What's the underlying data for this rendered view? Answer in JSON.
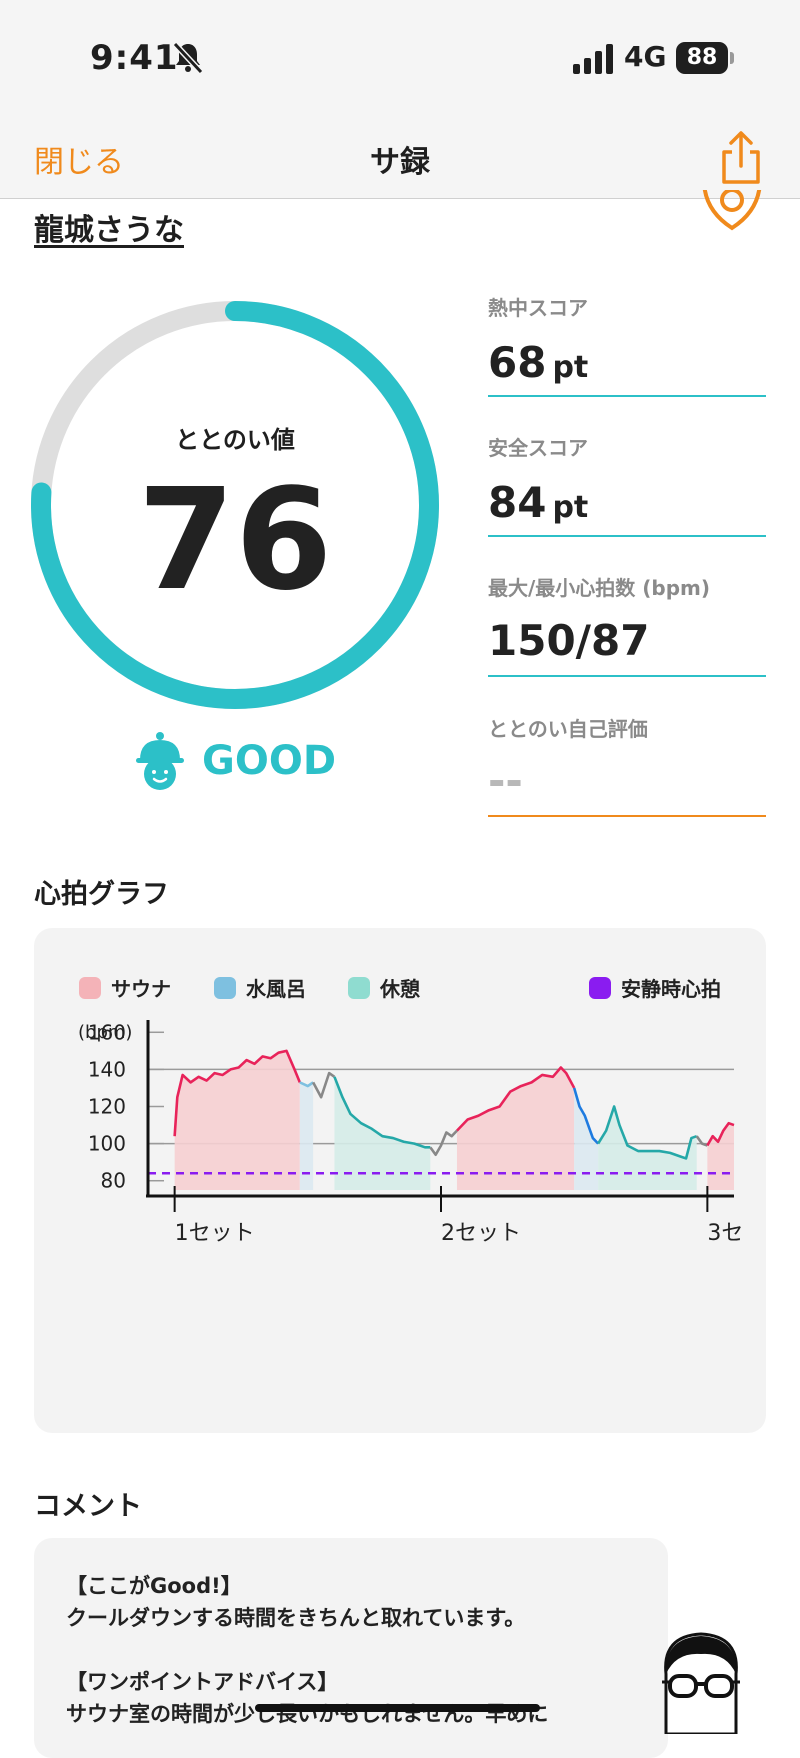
{
  "status_bar": {
    "time": "9:41",
    "network": "4G",
    "battery": "88"
  },
  "nav": {
    "close_label": "閉じる",
    "title": "サ録"
  },
  "user": {
    "name": "龍城さうな"
  },
  "gauge": {
    "label": "ととのい値",
    "value": "76",
    "fraction": 0.76,
    "color": "#2cc0c8"
  },
  "rating": {
    "text": "GOOD"
  },
  "scores": [
    {
      "label": "熱中スコア",
      "value": "68",
      "unit": "pt"
    },
    {
      "label": "安全スコア",
      "value": "84",
      "unit": "pt"
    },
    {
      "label": "最大/最小心拍数 (bpm)",
      "value": "150/87",
      "unit": ""
    },
    {
      "label": "ととのい自己評価",
      "value": "--",
      "unit": ""
    }
  ],
  "heart_section": {
    "title": "心拍グラフ"
  },
  "comment_section": {
    "title": "コメント",
    "lines": [
      "【ここがGood!】",
      "クールダウンする時間をきちんと取れています。",
      "",
      "【ワンポイントアドバイス】",
      "サウナ室の時間が少し長いかもしれません。早めに"
    ]
  },
  "chart_data": {
    "type": "area",
    "legend": [
      {
        "name": "サウナ",
        "color": "#f4b3b8"
      },
      {
        "name": "水風呂",
        "color": "#7ec0e0"
      },
      {
        "name": "休憩",
        "color": "#8fdcd0"
      },
      {
        "name": "安静時心拍",
        "color": "#8a1cf0"
      }
    ],
    "ylabel": "(bpm)",
    "yticks": [
      80,
      100,
      120,
      140,
      160
    ],
    "ylim": [
      75,
      165
    ],
    "xlim": [
      0,
      22
    ],
    "xticks": [
      {
        "value": 1,
        "label": "1セット"
      },
      {
        "value": 11,
        "label": "2セット"
      },
      {
        "value": 21,
        "label": "3セ"
      }
    ],
    "resting_hr": 84,
    "series": [
      {
        "name": "サウナ",
        "color": "#e8235a",
        "fill": "#f6cfd2",
        "points": [
          [
            1,
            104
          ],
          [
            1.1,
            125
          ],
          [
            1.3,
            137
          ],
          [
            1.6,
            133
          ],
          [
            1.9,
            136
          ],
          [
            2.2,
            134
          ],
          [
            2.5,
            138
          ],
          [
            2.8,
            137
          ],
          [
            3.1,
            140
          ],
          [
            3.4,
            141
          ],
          [
            3.7,
            145
          ],
          [
            4,
            143
          ],
          [
            4.3,
            147
          ],
          [
            4.6,
            146
          ],
          [
            4.9,
            149
          ],
          [
            5.2,
            150
          ],
          [
            5.5,
            140
          ],
          [
            5.7,
            133
          ]
        ]
      },
      {
        "name": "水風呂",
        "color": "#7ec0e0",
        "fill": "#dbe9f1",
        "points": [
          [
            5.7,
            133
          ],
          [
            6,
            131
          ],
          [
            6.2,
            133
          ]
        ]
      },
      {
        "name": "不明",
        "color": "#888888",
        "fill": "none",
        "points": [
          [
            6.2,
            133
          ],
          [
            6.5,
            125
          ],
          [
            6.8,
            138
          ],
          [
            7,
            136
          ]
        ]
      },
      {
        "name": "休憩",
        "color": "#25a8a8",
        "fill": "#d5ece8",
        "points": [
          [
            7,
            136
          ],
          [
            7.3,
            125
          ],
          [
            7.6,
            116
          ],
          [
            8,
            111
          ],
          [
            8.4,
            108
          ],
          [
            8.8,
            104
          ],
          [
            9.2,
            103
          ],
          [
            9.6,
            101
          ],
          [
            10,
            100
          ],
          [
            10.4,
            98
          ],
          [
            10.6,
            98
          ]
        ]
      },
      {
        "name": "不明",
        "color": "#888888",
        "fill": "none",
        "points": [
          [
            10.6,
            98
          ],
          [
            10.8,
            94
          ],
          [
            11,
            99
          ],
          [
            11.2,
            106
          ],
          [
            11.4,
            104
          ],
          [
            11.6,
            107
          ]
        ]
      },
      {
        "name": "サウナ",
        "color": "#e8235a",
        "fill": "#f6cfd2",
        "points": [
          [
            11.6,
            107
          ],
          [
            12,
            113
          ],
          [
            12.4,
            115
          ],
          [
            12.8,
            118
          ],
          [
            13.2,
            120
          ],
          [
            13.6,
            128
          ],
          [
            14,
            131
          ],
          [
            14.4,
            133
          ],
          [
            14.8,
            137
          ],
          [
            15.2,
            136
          ],
          [
            15.5,
            141
          ],
          [
            15.7,
            138
          ],
          [
            16,
            130
          ]
        ]
      },
      {
        "name": "水風呂",
        "color": "#1e7be0",
        "fill": "#dbe9f1",
        "points": [
          [
            16,
            130
          ],
          [
            16.2,
            120
          ],
          [
            16.4,
            115
          ],
          [
            16.7,
            103
          ],
          [
            16.9,
            100
          ]
        ]
      },
      {
        "name": "休憩",
        "color": "#25a8a8",
        "fill": "#d5ece8",
        "points": [
          [
            16.9,
            100
          ],
          [
            17.2,
            107
          ],
          [
            17.5,
            120
          ],
          [
            17.7,
            110
          ],
          [
            18,
            99
          ],
          [
            18.4,
            96
          ],
          [
            18.8,
            96
          ],
          [
            19.2,
            96
          ],
          [
            19.6,
            95
          ],
          [
            20,
            93
          ],
          [
            20.2,
            92
          ],
          [
            20.4,
            103
          ],
          [
            20.6,
            104
          ]
        ]
      },
      {
        "name": "不明",
        "color": "#888888",
        "fill": "none",
        "points": [
          [
            20.6,
            104
          ],
          [
            20.8,
            100
          ],
          [
            21,
            99
          ]
        ]
      },
      {
        "name": "サウナ",
        "color": "#e8235a",
        "fill": "#f6cfd2",
        "points": [
          [
            21,
            99
          ],
          [
            21.2,
            104
          ],
          [
            21.4,
            101
          ],
          [
            21.6,
            107
          ],
          [
            21.8,
            111
          ],
          [
            22,
            110
          ]
        ]
      }
    ]
  }
}
